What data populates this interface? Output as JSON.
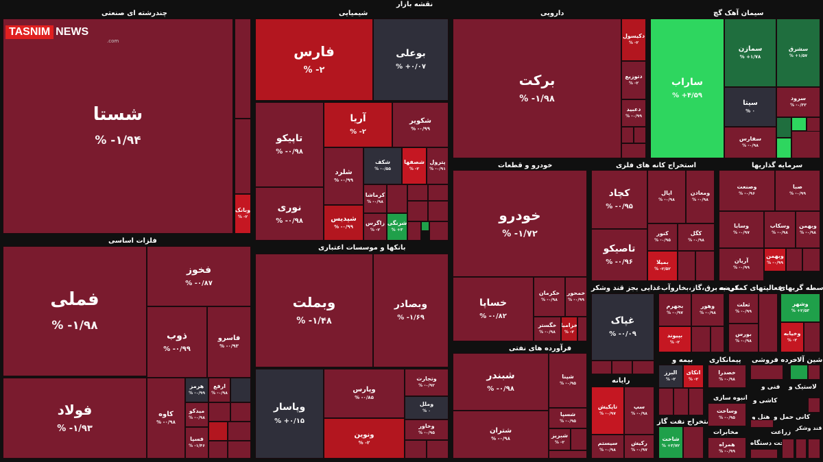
{
  "top_title": "نقشه بازار",
  "logo": {
    "brand_a": "TASNIM",
    "brand_b": "NEWS",
    "domain": ".com"
  },
  "sectors": {
    "chandreshte": "چندرشته ای صنعتی",
    "shimiayi": "شیمیایی",
    "darooei": "دارویی",
    "siman": "سیمان آهک گچ",
    "felezat": "فلزات اساسی",
    "bankha": "بانکها و موسسات اعتباری",
    "khodro": "خودرو و قطعات",
    "estekhraj_felezi": "استخراج کانه های فلزی",
    "sarmaye": "سرمایه گذاریها",
    "faravarde_naft": "فرآورده های نفتی",
    "ghazayi": "غذایی بجز قند وشکر",
    "arze_bargh": "عرضه برق،گاز،بخاروآب",
    "komaki": "فعالیتهای کمکی به",
    "vaseteh": "واسطه گریهای",
    "rayane": "رایانه",
    "bime": "بیمه و",
    "peymankari": "پیمانکاری",
    "khorde": "خرده فروشی",
    "mashin": "ماشین آلات",
    "estekhraj_naft": "استخراج نفت گاز"
  },
  "tiles": [
    {
      "name": "شستا",
      "pct": "% -۱/۹۴"
    },
    {
      "name": "وبانک",
      "pct": "% -۲"
    },
    {
      "name": "فملی",
      "pct": "% -۱/۹۸"
    },
    {
      "name": "فخوز",
      "pct": "% -۰/۸۷"
    },
    {
      "name": "ذوب",
      "pct": "% -۰/۹۹"
    },
    {
      "name": "فولاد",
      "pct": "% -۱/۹۳"
    },
    {
      "name": "فاسرو",
      "pct": "% -۰/۹۳"
    },
    {
      "name": "کاوه",
      "pct": "% -۰/۹۸"
    },
    {
      "name": "هرمز",
      "pct": "% -۰/۹۹"
    },
    {
      "name": "ارفع",
      "pct": "% -۰/۹۸"
    },
    {
      "name": "میدکو",
      "pct": "% -۰/۹۸"
    },
    {
      "name": "فسپا",
      "pct": "% -۱/۴۶"
    },
    {
      "name": "فارس",
      "pct": "% -۲"
    },
    {
      "name": "بوعلی",
      "pct": "% +۰/۰۷"
    },
    {
      "name": "تاپیکو",
      "pct": "% -۰/۹۸"
    },
    {
      "name": "آریا",
      "pct": "% -۲"
    },
    {
      "name": "شکویر",
      "pct": "% -۰/۹۹"
    },
    {
      "name": "شلرد",
      "pct": "% -۰/۹۹"
    },
    {
      "name": "شکف",
      "pct": "% -۰/۵۵"
    },
    {
      "name": "شصفها",
      "pct": "% -۲"
    },
    {
      "name": "پترول",
      "pct": "% -۰/۹۱"
    },
    {
      "name": "نوری",
      "pct": "% -۰/۹۸"
    },
    {
      "name": "کرماشا",
      "pct": "% -۰/۹۸"
    },
    {
      "name": "شپدیس",
      "pct": "% -۰/۹۹"
    },
    {
      "name": "زاگرس",
      "pct": "% -۲"
    },
    {
      "name": "شرنگی",
      "pct": "% +۳"
    },
    {
      "name": "وبملت",
      "pct": "% -۱/۴۸"
    },
    {
      "name": "وبصادر",
      "pct": "% -۱/۶۹"
    },
    {
      "name": "وپاسار",
      "pct": "% +۰/۱۵"
    },
    {
      "name": "وپارس",
      "pct": "% -۰/۸۵"
    },
    {
      "name": "ونوین",
      "pct": "% -۲"
    },
    {
      "name": "وتجارت",
      "pct": "% -۰/۹۲"
    },
    {
      "name": "وملل",
      "pct": "% ۰"
    },
    {
      "name": "وخاور",
      "pct": "% -۰/۹۵"
    },
    {
      "name": "برکت",
      "pct": "% -۱/۹۸"
    },
    {
      "name": "دکیسول",
      "pct": "% -۲"
    },
    {
      "name": "دتوزیع",
      "pct": "% -۲"
    },
    {
      "name": "دعبید",
      "pct": "% -۰/۹۹"
    },
    {
      "name": "ساراب",
      "pct": "% +۴/۵۹"
    },
    {
      "name": "سمازن",
      "pct": "% +۱/۷۸"
    },
    {
      "name": "سشرق",
      "pct": "% +۱/۵۷"
    },
    {
      "name": "سیتا",
      "pct": "% ۰"
    },
    {
      "name": "سرود",
      "pct": "% -۰/۳۳"
    },
    {
      "name": "سفارس",
      "pct": "% -۰/۹۸"
    },
    {
      "name": "خودرو",
      "pct": "% -۱/۷۲"
    },
    {
      "name": "خساپا",
      "pct": "% -۰/۸۲"
    },
    {
      "name": "خکرمان",
      "pct": "% -۰/۹۸"
    },
    {
      "name": "خمحور",
      "pct": "% -۰/۹۹"
    },
    {
      "name": "خگستر",
      "pct": "% -۰/۹۸"
    },
    {
      "name": "خزامیا",
      "pct": "% -۲"
    },
    {
      "name": "کچاد",
      "pct": "% -۰/۹۵"
    },
    {
      "name": "اپال",
      "pct": "% -۰/۹۸"
    },
    {
      "name": "ومعادن",
      "pct": "% -۰/۹۸"
    },
    {
      "name": "کنور",
      "pct": "% -۰/۹۵"
    },
    {
      "name": "کگل",
      "pct": "% -۰/۹۸"
    },
    {
      "name": "تاصیکو",
      "pct": "% -۰/۹۶"
    },
    {
      "name": "بمیلا",
      "pct": "% -۲/۵۲"
    },
    {
      "name": "وصنعت",
      "pct": "% -۰/۹۶"
    },
    {
      "name": "صبا",
      "pct": "% -۰/۹۹"
    },
    {
      "name": "وسایا",
      "pct": "% -۰/۹۷"
    },
    {
      "name": "وسکاب",
      "pct": "% -۰/۹۸"
    },
    {
      "name": "وبهمن",
      "pct": "% -۰/۹۸"
    },
    {
      "name": "آریان",
      "pct": "% -۰/۹۹"
    },
    {
      "name": "وبهمن",
      "pct": "% -۰/۹۹"
    },
    {
      "name": "شبندر",
      "pct": "% -۰/۹۸"
    },
    {
      "name": "شپنا",
      "pct": "% -۰/۹۵"
    },
    {
      "name": "شتران",
      "pct": "% -۰/۹۸"
    },
    {
      "name": "شسپا",
      "pct": "% -۰/۹۵"
    },
    {
      "name": "شبریز",
      "pct": "% -۲"
    },
    {
      "name": "غپاک",
      "pct": "% -۰/۰۹"
    },
    {
      "name": "بجهرم",
      "pct": "% -۰/۹۷"
    },
    {
      "name": "وهور",
      "pct": "% -۰/۹۸"
    },
    {
      "name": "بپیوند",
      "pct": "% -۲"
    },
    {
      "name": "ثعلت",
      "pct": "% -۰/۹۹"
    },
    {
      "name": "وشهر",
      "pct": "% +۲/۵۳"
    },
    {
      "name": "بورس",
      "pct": "% -۰/۹۸"
    },
    {
      "name": "وخیابه",
      "pct": "% -۲"
    },
    {
      "name": "تاپکیش",
      "pct": "% -۰/۹۷"
    },
    {
      "name": "سپ",
      "pct": "% -۰/۹۸"
    },
    {
      "name": "سیستم",
      "pct": "% -۰/۹۸"
    },
    {
      "name": "رکیش",
      "pct": "% -۰/۹۷"
    },
    {
      "name": "البرز",
      "pct": "% -۲"
    },
    {
      "name": "اتکای",
      "pct": "% -۲"
    },
    {
      "name": "خصدرا",
      "pct": "% -۰/۹۸"
    },
    {
      "name": "وساخت",
      "pct": "% -۰/۹۵"
    },
    {
      "name": "همراه",
      "pct": "% -۰/۹۹"
    },
    {
      "name": "شاخت",
      "pct": "% +۳/۷۲"
    }
  ],
  "labels": {
    "lastik": "لاستیک و",
    "kashi": "کاشی و",
    "fanni": "فنی و",
    "anbooh": "انبوه سازی",
    "haml": "حمل و",
    "hotel": "هتل و",
    "kani": "کانی",
    "qand": "سا قند وشکر",
    "zeraat": "زراعت",
    "dastgah": "ساخت دستگاه",
    "mokhaberat": "مخابرات"
  }
}
